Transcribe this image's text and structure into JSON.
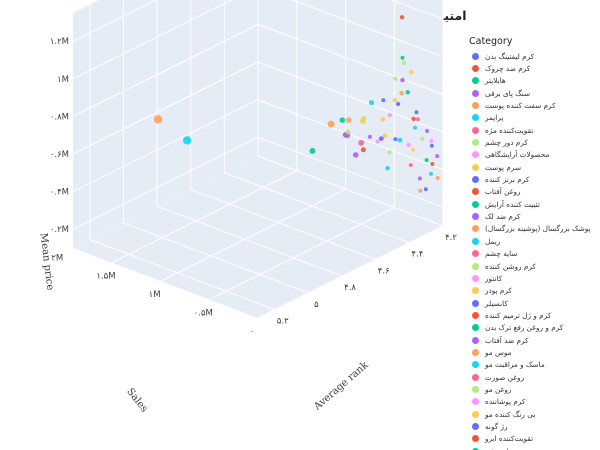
{
  "chart_data": {
    "type": "scatter3d",
    "title": "امتیاز میانگین، تعداد فروش و قیمت میانگین محصولات",
    "axes": {
      "x": {
        "label": "Average rank",
        "ticks": [
          "۴.۲",
          "۴.۴",
          "۴.۶",
          "۴.۸",
          "۵",
          "۵.۲"
        ],
        "range": [
          4.2,
          5.3
        ]
      },
      "y": {
        "label": "Sales",
        "ticks": [
          "۰",
          "۰.۵M",
          "۱M",
          "۱.۵M",
          "۲M"
        ],
        "range": [
          0,
          1900000
        ]
      },
      "z": {
        "label": "Mean price",
        "ticks": [
          "۰.۲M",
          "۰.۴M",
          "۰.۶M",
          "۰.۸M",
          "۱M",
          "۱.۲M"
        ],
        "range": [
          0.1,
          1.35
        ]
      }
    },
    "grid": true,
    "legend": {
      "title": "Category",
      "placement": "right",
      "items": [
        {
          "label": "کرم لیفتینگ بدن",
          "color": "#636efa"
        },
        {
          "label": "کرم ضد چروک",
          "color": "#ef553b"
        },
        {
          "label": "هایلایتر",
          "color": "#00cc96"
        },
        {
          "label": "سنگ پای برقی",
          "color": "#ab63fa"
        },
        {
          "label": "کرم سفت کننده پوست",
          "color": "#ffa15a"
        },
        {
          "label": "پرایمر",
          "color": "#19d3f3"
        },
        {
          "label": "تقویت‌کننده مژه",
          "color": "#ff6692"
        },
        {
          "label": "کرم دور چشم",
          "color": "#b6e880"
        },
        {
          "label": "محصولات آرایشگاهی",
          "color": "#ff97ff"
        },
        {
          "label": "سرم پوست",
          "color": "#fecb52"
        },
        {
          "label": "کرم برنز کننده",
          "color": "#636efa"
        },
        {
          "label": "روغن آفتاب",
          "color": "#ef553b"
        },
        {
          "label": "تثبیت کننده آرایش",
          "color": "#00cc96"
        },
        {
          "label": "کرم ضد لک",
          "color": "#ab63fa"
        },
        {
          "label": "پوشک بزرگسال (پوشینه بزرگسال)",
          "color": "#ffa15a"
        },
        {
          "label": "ریمل",
          "color": "#19d3f3"
        },
        {
          "label": "سایه چشم",
          "color": "#ff6692"
        },
        {
          "label": "کرم روشن کننده",
          "color": "#b6e880"
        },
        {
          "label": "کانتور",
          "color": "#ff97ff"
        },
        {
          "label": "کرم پودر",
          "color": "#fecb52"
        },
        {
          "label": "کانسیلر",
          "color": "#636efa"
        },
        {
          "label": "کرم و ژل ترمیم کننده",
          "color": "#ef553b"
        },
        {
          "label": "کرم و روغن رفع ترک بدن",
          "color": "#00cc96"
        },
        {
          "label": "کرم ضد آفتاب",
          "color": "#ab63fa"
        },
        {
          "label": "موس مو",
          "color": "#ffa15a"
        },
        {
          "label": "ماسک و مراقبت مو",
          "color": "#19d3f3"
        },
        {
          "label": "روغن صورت",
          "color": "#ff6692"
        },
        {
          "label": "روغن مو",
          "color": "#b6e880"
        },
        {
          "label": "کرم پوشاننده",
          "color": "#ff97ff"
        },
        {
          "label": "بی رنگ کننده مو",
          "color": "#fecb52"
        },
        {
          "label": "رژ گونه",
          "color": "#636efa"
        },
        {
          "label": "تقویت‌کننده ابرو",
          "color": "#ef553b"
        },
        {
          "label": "مداد چشم",
          "color": "#00cc96"
        }
      ]
    },
    "points": [
      {
        "x": 4.94,
        "y": 1350000,
        "z": 0.62,
        "color": "#19d3f3",
        "size": 4.2
      },
      {
        "x": 4.91,
        "y": 1700000,
        "z": 0.65,
        "color": "#ffa15a",
        "size": 4.2
      },
      {
        "x": 4.62,
        "y": 260000,
        "z": 0.72,
        "color": "#ab63fa",
        "size": 3.2
      },
      {
        "x": 4.58,
        "y": 240000,
        "z": 0.6,
        "color": "#ab63fa",
        "size": 2.8
      },
      {
        "x": 4.5,
        "y": 300000,
        "z": 0.58,
        "color": "#ef553b",
        "size": 2.5
      },
      {
        "x": 4.46,
        "y": 700000,
        "z": 0.62,
        "color": "#ffa15a",
        "size": 3.5
      },
      {
        "x": 4.42,
        "y": 460000,
        "z": 0.55,
        "color": "#ff6692",
        "size": 3.0
      },
      {
        "x": 4.6,
        "y": 650000,
        "z": 0.55,
        "color": "#00cc96",
        "size": 3.0
      },
      {
        "x": 4.48,
        "y": 550000,
        "z": 0.68,
        "color": "#00cc96",
        "size": 2.8
      },
      {
        "x": 4.56,
        "y": 200000,
        "z": 0.78,
        "color": "#fecb52",
        "size": 3.0
      },
      {
        "x": 4.54,
        "y": 380000,
        "z": 0.74,
        "color": "#ffa15a",
        "size": 2.8
      },
      {
        "x": 4.44,
        "y": 320000,
        "z": 0.8,
        "color": "#19d3f3",
        "size": 2.5
      },
      {
        "x": 4.66,
        "y": 180000,
        "z": 0.77,
        "color": "#b6e880",
        "size": 2.4
      },
      {
        "x": 4.5,
        "y": 100000,
        "z": 0.78,
        "color": "#fecb52",
        "size": 2.4
      },
      {
        "x": 4.4,
        "y": 200000,
        "z": 0.74,
        "color": "#ff97ff",
        "size": 2.2
      },
      {
        "x": 4.38,
        "y": 150000,
        "z": 0.8,
        "color": "#636efa",
        "size": 2.2
      },
      {
        "x": 4.42,
        "y": 110000,
        "z": 0.96,
        "color": "#b6e880",
        "size": 2.2
      },
      {
        "x": 4.36,
        "y": 140000,
        "z": 0.92,
        "color": "#ab63fa",
        "size": 2.2
      },
      {
        "x": 4.44,
        "y": 80000,
        "z": 0.86,
        "color": "#fecb52",
        "size": 2.2
      },
      {
        "x": 4.4,
        "y": 80000,
        "z": 0.88,
        "color": "#ffa15a",
        "size": 2.2
      },
      {
        "x": 4.34,
        "y": 120000,
        "z": 0.85,
        "color": "#00cc96",
        "size": 2.2
      },
      {
        "x": 4.52,
        "y": 60000,
        "z": 0.9,
        "color": "#636efa",
        "size": 2.0
      },
      {
        "x": 4.34,
        "y": 60000,
        "z": 0.72,
        "color": "#ef553b",
        "size": 2.2
      },
      {
        "x": 4.3,
        "y": 100000,
        "z": 0.73,
        "color": "#636efa",
        "size": 2.0
      },
      {
        "x": 4.28,
        "y": 120000,
        "z": 0.68,
        "color": "#ff6692",
        "size": 2.0
      },
      {
        "x": 4.32,
        "y": 80000,
        "z": 0.66,
        "color": "#19d3f3",
        "size": 2.0
      },
      {
        "x": 4.26,
        "y": 60000,
        "z": 0.62,
        "color": "#ab63fa",
        "size": 2.0
      },
      {
        "x": 4.3,
        "y": 40000,
        "z": 0.6,
        "color": "#b6e880",
        "size": 2.0
      },
      {
        "x": 4.24,
        "y": 50000,
        "z": 0.56,
        "color": "#ff97ff",
        "size": 2.0
      },
      {
        "x": 4.36,
        "y": 30000,
        "z": 0.57,
        "color": "#fecb52",
        "size": 2.0
      },
      {
        "x": 4.22,
        "y": 80000,
        "z": 0.52,
        "color": "#636efa",
        "size": 2.0
      },
      {
        "x": 4.28,
        "y": 30000,
        "z": 0.48,
        "color": "#00cc96",
        "size": 2.0
      },
      {
        "x": 4.24,
        "y": 40000,
        "z": 0.44,
        "color": "#ef553b",
        "size": 2.0
      },
      {
        "x": 4.2,
        "y": 60000,
        "z": 0.46,
        "color": "#ab63fa",
        "size": 2.0
      },
      {
        "x": 4.26,
        "y": 20000,
        "z": 0.4,
        "color": "#19d3f3",
        "size": 2.0
      },
      {
        "x": 4.22,
        "y": 20000,
        "z": 0.36,
        "color": "#ffa15a",
        "size": 2.0
      },
      {
        "x": 4.38,
        "y": 20000,
        "z": 0.5,
        "color": "#ff6692",
        "size": 2.0
      },
      {
        "x": 4.46,
        "y": 40000,
        "z": 0.67,
        "color": "#636efa",
        "size": 2.0
      },
      {
        "x": 4.5,
        "y": 30000,
        "z": 0.62,
        "color": "#b6e880",
        "size": 2.0
      },
      {
        "x": 4.56,
        "y": 50000,
        "z": 0.7,
        "color": "#ff97ff",
        "size": 2.0
      },
      {
        "x": 4.6,
        "y": 60000,
        "z": 0.74,
        "color": "#ab63fa",
        "size": 2.0
      },
      {
        "x": 4.4,
        "y": 250000,
        "z": 0.62,
        "color": "#fecb52",
        "size": 2.4
      },
      {
        "x": 4.34,
        "y": 200000,
        "z": 0.58,
        "color": "#19d3f3",
        "size": 2.4
      },
      {
        "x": 4.3,
        "y": 180000,
        "z": 0.54,
        "color": "#ff97ff",
        "size": 2.2
      },
      {
        "x": 4.44,
        "y": 400000,
        "z": 0.7,
        "color": "#b6e880",
        "size": 2.6
      },
      {
        "x": 4.52,
        "y": 450000,
        "z": 0.64,
        "color": "#ef553b",
        "size": 2.6
      },
      {
        "x": 4.48,
        "y": 150000,
        "z": 0.66,
        "color": "#636efa",
        "size": 2.4
      },
      {
        "x": 4.36,
        "y": 50000,
        "z": 0.98,
        "color": "#fecb52",
        "size": 2.2
      },
      {
        "x": 4.38,
        "y": 90000,
        "z": 1.03,
        "color": "#b6e880",
        "size": 2.2
      },
      {
        "x": 4.4,
        "y": 70000,
        "z": 1.07,
        "color": "#00cc96",
        "size": 2.0
      },
      {
        "x": 4.42,
        "y": 40000,
        "z": 1.3,
        "color": "#ef553b",
        "size": 2.2
      },
      {
        "x": 4.32,
        "y": 30000,
        "z": 0.4,
        "color": "#ab63fa",
        "size": 2.0
      },
      {
        "x": 4.3,
        "y": 60000,
        "z": 0.32,
        "color": "#ffa15a",
        "size": 2.0
      },
      {
        "x": 4.25,
        "y": 90000,
        "z": 0.3,
        "color": "#636efa",
        "size": 2.0
      },
      {
        "x": 4.46,
        "y": 120000,
        "z": 0.5,
        "color": "#19d3f3",
        "size": 2.2
      }
    ]
  }
}
